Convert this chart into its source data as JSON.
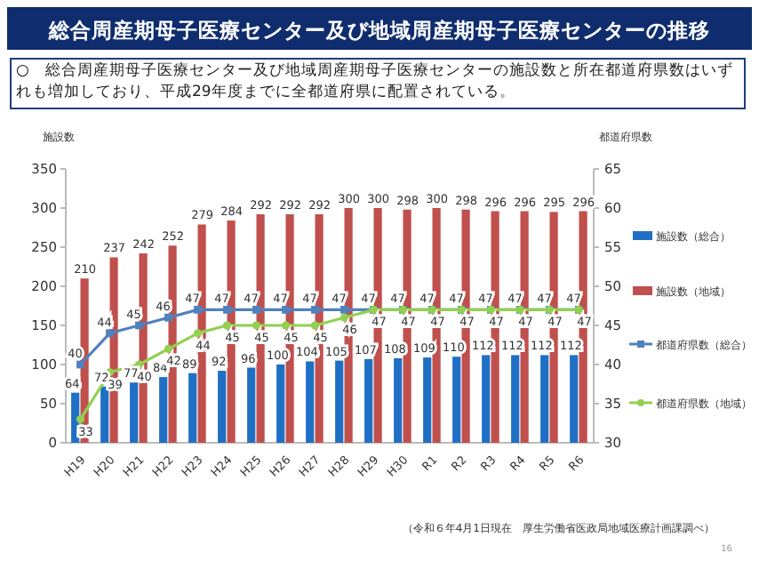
{
  "chart_data": {
    "type": "bar",
    "title": "総合周産期母子医療センター及び地域周産期母子医療センターの推移",
    "subtitle": "○　総合周産期母子医療センター及び地域周産期母子医療センターの施設数と所在都道府県数はいずれも増加しており、平成29年度までに全都道府県に配置されている。",
    "ylabel": "施設数",
    "y2label": "都道府県数",
    "categories": [
      "H19",
      "H20",
      "H21",
      "H22",
      "H23",
      "H24",
      "H25",
      "H26",
      "H27",
      "H28",
      "H29",
      "H30",
      "R1",
      "R2",
      "R3",
      "R4",
      "R5",
      "R6"
    ],
    "series": [
      {
        "name": "施設数（総合）",
        "color": "#1f6fc5",
        "values": [
          64,
          72,
          77,
          84,
          89,
          92,
          96,
          100,
          104,
          105,
          107,
          108,
          109,
          110,
          112,
          112,
          112,
          112
        ]
      },
      {
        "name": "施設数（地域）",
        "color": "#c0504d",
        "values": [
          210,
          237,
          242,
          252,
          279,
          284,
          292,
          292,
          292,
          300,
          300,
          298,
          300,
          298,
          296,
          296,
          295,
          296
        ]
      },
      {
        "name": "都道府県数（総合）",
        "type": "line",
        "axis": "y2",
        "marker": "square",
        "color": "#4f81bd",
        "values": [
          40,
          44,
          45,
          46,
          47,
          47,
          47,
          47,
          47,
          47,
          47,
          47,
          47,
          47,
          47,
          47,
          47,
          47
        ]
      },
      {
        "name": "都道府県数（地域）",
        "type": "line",
        "axis": "y2",
        "marker": "circle",
        "color": "#92d050",
        "values": [
          33,
          39,
          40,
          42,
          44,
          45,
          45,
          45,
          45,
          46,
          47,
          47,
          47,
          47,
          47,
          47,
          47,
          47
        ]
      }
    ],
    "ylim": [
      0,
      350
    ],
    "yticks": [
      0,
      50,
      100,
      150,
      200,
      250,
      300,
      350
    ],
    "y2lim": [
      30,
      65
    ],
    "y2ticks": [
      30,
      35,
      40,
      45,
      50,
      55,
      60,
      65
    ],
    "data_labels": true,
    "legend": "right",
    "annotations": [
      "（令和６年4月1日現在　厚生労働省医政局地域医療計画課調べ）",
      "16"
    ]
  }
}
